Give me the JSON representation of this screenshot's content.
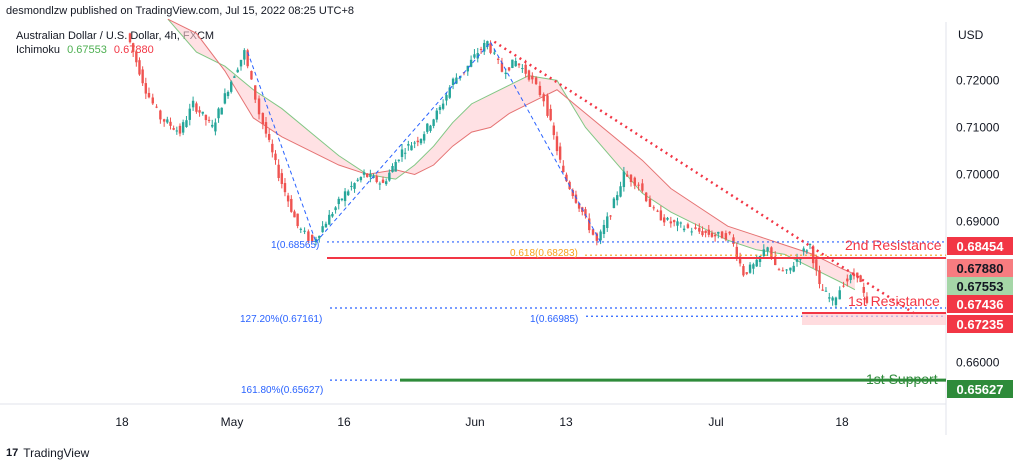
{
  "header": {
    "published": "desmondlzw published on TradingView.com, Jul 15, 2022 08:25 UTC+8"
  },
  "legend": {
    "symbol": "Australian Dollar / U.S. Dollar, 4h, FXCM",
    "ichimoku_label": "Ichimoku",
    "ichimoku_v1": "0.67553",
    "ichimoku_v2": "0.67880"
  },
  "currency": "USD",
  "footer": {
    "brand": "TradingView"
  },
  "colors": {
    "up": "#26a69a",
    "down": "#ef5350",
    "red_line": "#f23645",
    "green_line": "#2e8b3a",
    "blue": "#2962ff",
    "cloud_green": "#c8e6c9",
    "cloud_red": "#ffcdd2",
    "fib_orange": "#f7a21b"
  },
  "chart_data": {
    "type": "line",
    "title": "",
    "ylabel": "",
    "ylim": [
      0.6512,
      0.7324
    ],
    "y_ticks": [
      "0.72000",
      "0.71000",
      "0.70000",
      "0.69000",
      "0.66000"
    ],
    "x_ticks": [
      "18",
      "May",
      "16",
      "Jun",
      "13",
      "Jul",
      "18"
    ],
    "series": [
      {
        "name": "AUD/USD price path",
        "points": [
          [
            0,
            0.73
          ],
          [
            10,
            0.718
          ],
          [
            18,
            0.712
          ],
          [
            28,
            0.709
          ],
          [
            35,
            0.715
          ],
          [
            45,
            0.71
          ],
          [
            55,
            0.72
          ],
          [
            62,
            0.726
          ],
          [
            70,
            0.713
          ],
          [
            80,
            0.7
          ],
          [
            90,
            0.689
          ],
          [
            98,
            0.6856
          ],
          [
            105,
            0.69
          ],
          [
            115,
            0.696
          ],
          [
            125,
            0.7
          ],
          [
            135,
            0.698
          ],
          [
            145,
            0.705
          ],
          [
            155,
            0.708
          ],
          [
            165,
            0.714
          ],
          [
            172,
            0.72
          ],
          [
            178,
            0.722
          ],
          [
            185,
            0.726
          ],
          [
            190,
            0.7281
          ],
          [
            198,
            0.722
          ],
          [
            205,
            0.724
          ],
          [
            212,
            0.721
          ],
          [
            220,
            0.716
          ],
          [
            230,
            0.7
          ],
          [
            240,
            0.692
          ],
          [
            248,
            0.6856
          ],
          [
            255,
            0.692
          ],
          [
            262,
            0.7
          ],
          [
            270,
            0.698
          ],
          [
            278,
            0.692
          ],
          [
            285,
            0.69
          ],
          [
            292,
            0.689
          ],
          [
            300,
            0.688
          ],
          [
            310,
            0.687
          ],
          [
            318,
            0.687
          ],
          [
            325,
            0.679
          ],
          [
            332,
            0.681
          ],
          [
            338,
            0.685
          ],
          [
            342,
            0.68
          ],
          [
            348,
            0.679
          ],
          [
            355,
            0.683
          ],
          [
            360,
            0.685
          ],
          [
            365,
            0.676
          ],
          [
            372,
            0.673
          ],
          [
            378,
            0.677
          ],
          [
            385,
            0.679
          ],
          [
            390,
            0.672
          ]
        ]
      },
      {
        "name": "Ichimoku leading span A",
        "points": [
          [
            20,
            0.733
          ],
          [
            35,
            0.726
          ],
          [
            50,
            0.723
          ],
          [
            65,
            0.718
          ],
          [
            80,
            0.714
          ],
          [
            95,
            0.709
          ],
          [
            110,
            0.704
          ],
          [
            125,
            0.7
          ],
          [
            140,
            0.699
          ],
          [
            150,
            0.702
          ],
          [
            160,
            0.706
          ],
          [
            170,
            0.711
          ],
          [
            180,
            0.715
          ],
          [
            190,
            0.717
          ],
          [
            200,
            0.719
          ],
          [
            210,
            0.721
          ],
          [
            225,
            0.72
          ],
          [
            240,
            0.71
          ],
          [
            255,
            0.703
          ],
          [
            270,
            0.696
          ],
          [
            285,
            0.692
          ],
          [
            300,
            0.689
          ],
          [
            315,
            0.686
          ],
          [
            330,
            0.684
          ],
          [
            345,
            0.683
          ],
          [
            360,
            0.68
          ],
          [
            375,
            0.677
          ],
          [
            382,
            0.6755
          ]
        ]
      },
      {
        "name": "Ichimoku leading span B",
        "points": [
          [
            20,
            0.733
          ],
          [
            35,
            0.73
          ],
          [
            50,
            0.722
          ],
          [
            65,
            0.712
          ],
          [
            80,
            0.708
          ],
          [
            95,
            0.705
          ],
          [
            110,
            0.702
          ],
          [
            125,
            0.7
          ],
          [
            140,
            0.701
          ],
          [
            150,
            0.7
          ],
          [
            160,
            0.702
          ],
          [
            170,
            0.706
          ],
          [
            180,
            0.709
          ],
          [
            190,
            0.71
          ],
          [
            200,
            0.713
          ],
          [
            210,
            0.715
          ],
          [
            225,
            0.718
          ],
          [
            240,
            0.713
          ],
          [
            255,
            0.708
          ],
          [
            270,
            0.703
          ],
          [
            285,
            0.697
          ],
          [
            300,
            0.693
          ],
          [
            315,
            0.689
          ],
          [
            330,
            0.687
          ],
          [
            345,
            0.685
          ],
          [
            360,
            0.683
          ],
          [
            375,
            0.68
          ],
          [
            382,
            0.6788
          ]
        ]
      }
    ],
    "horizontal_levels": [
      {
        "name": "2nd Resistance",
        "value": 0.68454,
        "label": "0.68454"
      },
      {
        "name": "Ichimoku",
        "value": 0.6788,
        "label": "0.67880"
      },
      {
        "name": "Ichimoku",
        "value": 0.67553,
        "label": "0.67553"
      },
      {
        "name": "1st Resistance",
        "value": 0.67436,
        "label": "0.67436"
      },
      {
        "name": "",
        "value": 0.67235,
        "label": "0.67235"
      },
      {
        "name": "1st Support",
        "value": 0.65627,
        "label": "0.65627"
      }
    ],
    "annotations": {
      "fib_top_left": "1(0.68565)",
      "fib_618": "0.618(0.68283)",
      "fib_1272": "127.20%(0.67161)",
      "fib_1_right": "1(0.66985)",
      "fib_1618": "161.80%(0.65627)",
      "second_resistance": "2nd Resistance",
      "first_resistance": "1st Resistance",
      "first_support": "1st Support"
    }
  }
}
